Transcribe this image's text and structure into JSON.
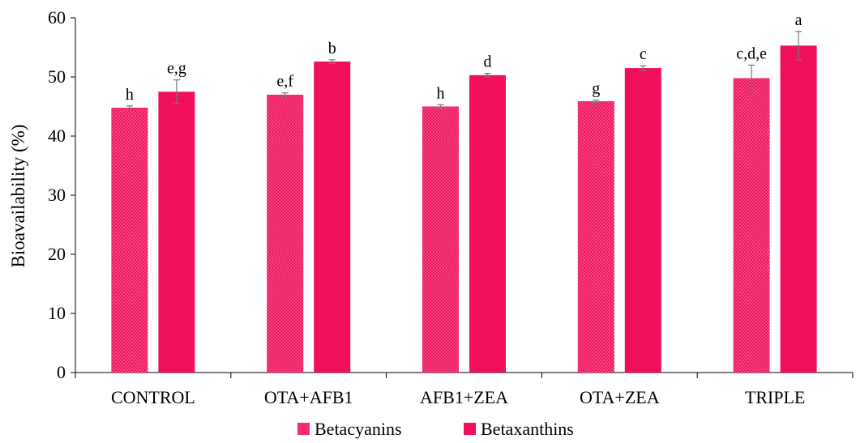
{
  "chart_data": {
    "type": "bar",
    "title": "",
    "xlabel": "",
    "ylabel": "Bioavailability (%)",
    "ylim": [
      0,
      60
    ],
    "yticks": [
      0,
      10,
      20,
      30,
      40,
      50,
      60
    ],
    "grid": false,
    "legend_position": "bottom",
    "categories": [
      "CONTROL",
      "OTA+AFB1",
      "AFB1+ZEA",
      "OTA+ZEA",
      "TRIPLE"
    ],
    "series": [
      {
        "name": "Betacyanins",
        "color": "#f0185f",
        "pattern": "dotted",
        "values": [
          44.8,
          47.0,
          45.0,
          45.9,
          49.8
        ],
        "errors": [
          0.3,
          0.3,
          0.3,
          0.2,
          2.2
        ],
        "labels": [
          "h",
          "e,f",
          "h",
          "g",
          "c,d,e"
        ]
      },
      {
        "name": "Betaxanthins",
        "color": "#f0105a",
        "pattern": "solid",
        "values": [
          47.5,
          52.6,
          50.3,
          51.5,
          55.3
        ],
        "errors": [
          2.0,
          0.3,
          0.3,
          0.4,
          2.4
        ],
        "labels": [
          "e,g",
          "b",
          "d",
          "c",
          "a"
        ]
      }
    ]
  }
}
